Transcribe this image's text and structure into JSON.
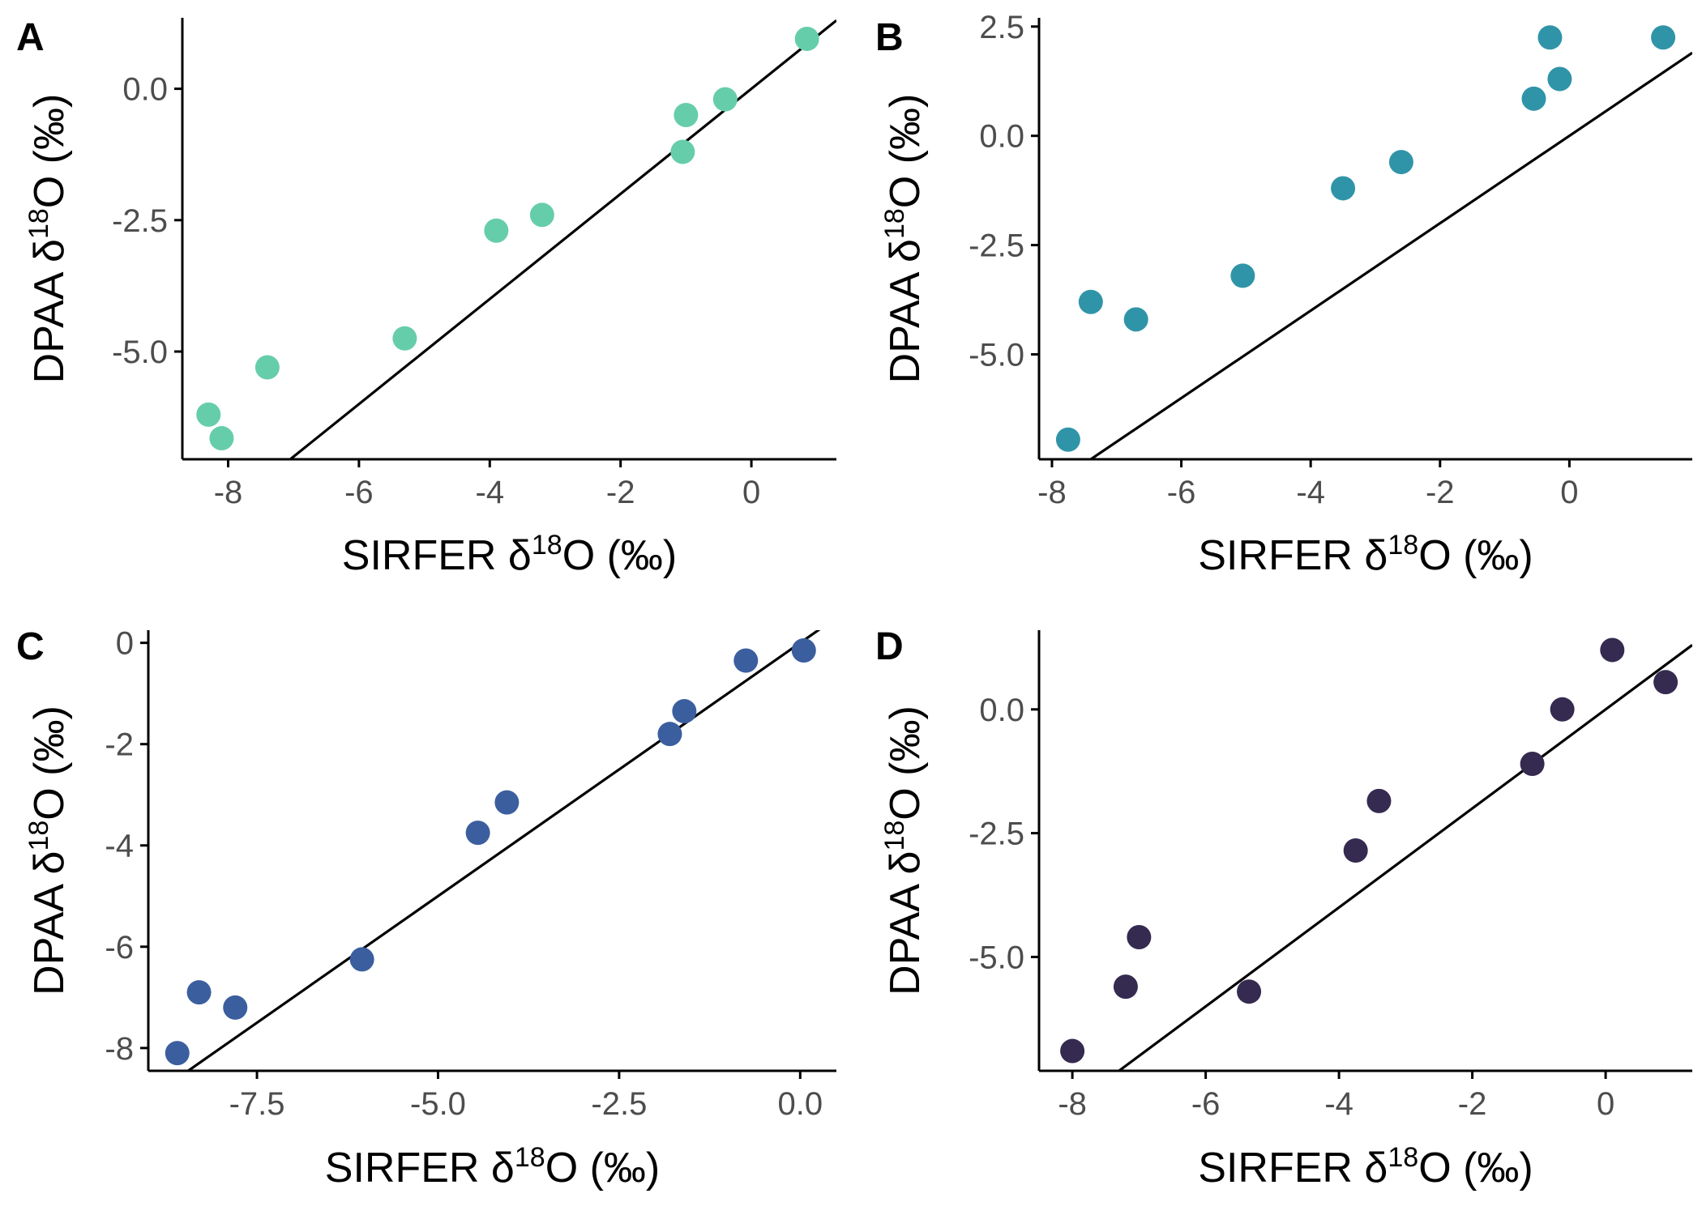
{
  "chart_data": [
    {
      "type": "scatter",
      "panel": "A",
      "xlabel": "SIRFER δ18O (‰)",
      "ylabel": "DPAA δ18O (‰)",
      "xlim": [
        -8.7,
        1.3
      ],
      "ylim": [
        -7.05,
        1.35
      ],
      "x_ticks": [
        -8,
        -6,
        -4,
        -2,
        0
      ],
      "x_tick_labels": [
        "-8",
        "-6",
        "-4",
        "-2",
        "0"
      ],
      "y_ticks": [
        0,
        -2.5,
        -5
      ],
      "y_tick_labels": [
        "0.0",
        "-2.5",
        "-5.0"
      ],
      "point_color": "#66CDAA",
      "x": [
        -8.3,
        -8.1,
        -7.4,
        -5.3,
        -3.9,
        -3.2,
        -1.05,
        -1.0,
        -0.4,
        0.85
      ],
      "y": [
        -6.2,
        -6.65,
        -5.3,
        -4.75,
        -2.7,
        -2.4,
        -1.2,
        -0.5,
        -0.2,
        0.95
      ],
      "fit_line": {
        "slope": 1.0,
        "intercept": 0.0
      },
      "grid": false
    },
    {
      "type": "scatter",
      "panel": "B",
      "xlabel": "SIRFER δ18O (‰)",
      "ylabel": "DPAA δ18O (‰)",
      "xlim": [
        -8.2,
        1.9
      ],
      "ylim": [
        -7.4,
        2.7
      ],
      "x_ticks": [
        -8,
        -6,
        -4,
        -2,
        0
      ],
      "x_tick_labels": [
        "-8",
        "-6",
        "-4",
        "-2",
        "0"
      ],
      "y_ticks": [
        2.5,
        0,
        -2.5,
        -5
      ],
      "y_tick_labels": [
        "2.5",
        "0.0",
        "-2.5",
        "-5.0"
      ],
      "point_color": "#3094A8",
      "x": [
        -7.75,
        -7.4,
        -6.7,
        -5.05,
        -3.5,
        -2.6,
        -0.55,
        -0.3,
        -0.15,
        1.45
      ],
      "y": [
        -6.95,
        -3.8,
        -4.2,
        -3.2,
        -1.2,
        -0.6,
        0.85,
        2.25,
        1.3,
        2.25
      ],
      "fit_line": {
        "slope": 1.0,
        "intercept": 0.0
      },
      "grid": false
    },
    {
      "type": "scatter",
      "panel": "C",
      "xlabel": "SIRFER δ18O (‰)",
      "ylabel": "DPAA δ18O (‰)",
      "xlim": [
        -9.0,
        0.5
      ],
      "ylim": [
        -8.45,
        0.25
      ],
      "x_ticks": [
        -7.5,
        -5.0,
        -2.5,
        0.0
      ],
      "x_tick_labels": [
        "-7.5",
        "-5.0",
        "-2.5",
        "0.0"
      ],
      "y_ticks": [
        0,
        -2,
        -4,
        -6,
        -8
      ],
      "y_tick_labels": [
        "0",
        "-2",
        "-4",
        "-6",
        "-8"
      ],
      "point_color": "#3B5E9E",
      "x": [
        -8.6,
        -8.3,
        -7.8,
        -6.05,
        -4.45,
        -4.05,
        -1.8,
        -1.6,
        -0.75,
        0.05
      ],
      "y": [
        -8.1,
        -6.9,
        -7.2,
        -6.25,
        -3.75,
        -3.15,
        -1.8,
        -1.35,
        -0.35,
        -0.15
      ],
      "fit_line": {
        "slope": 1.0,
        "intercept": 0.0
      },
      "grid": false
    },
    {
      "type": "scatter",
      "panel": "D",
      "xlabel": "SIRFER δ18O (‰)",
      "ylabel": "DPAA δ18O (‰)",
      "xlim": [
        -8.5,
        1.3
      ],
      "ylim": [
        -7.3,
        1.6
      ],
      "x_ticks": [
        -8,
        -6,
        -4,
        -2,
        0
      ],
      "x_tick_labels": [
        "-8",
        "-6",
        "-4",
        "-2",
        "0"
      ],
      "y_ticks": [
        0,
        -2.5,
        -5
      ],
      "y_tick_labels": [
        "0.0",
        "-2.5",
        "-5.0"
      ],
      "point_color": "#352A50",
      "x": [
        -8.0,
        -7.2,
        -7.0,
        -5.35,
        -3.75,
        -3.4,
        -1.1,
        -0.65,
        0.1,
        0.9
      ],
      "y": [
        -6.9,
        -5.6,
        -4.6,
        -5.7,
        -2.85,
        -1.85,
        -1.1,
        0.0,
        1.2,
        0.55
      ],
      "fit_line": {
        "slope": 1.0,
        "intercept": 0.0
      },
      "grid": false
    }
  ]
}
